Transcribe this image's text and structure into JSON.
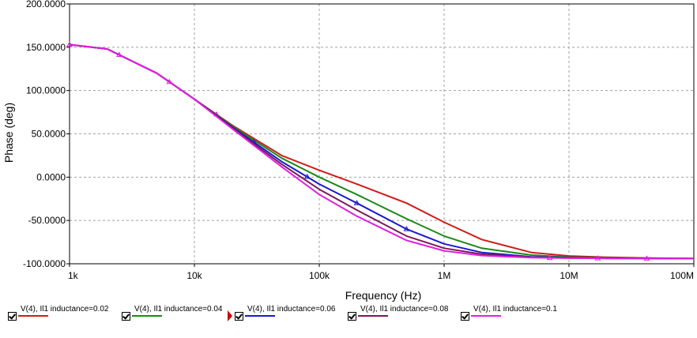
{
  "chart_data": {
    "type": "line",
    "title": "",
    "xlabel": "Frequency (Hz)",
    "ylabel": "Phase (deg)",
    "xscale": "log",
    "xlim": [
      1000,
      100000000
    ],
    "ylim": [
      -100,
      200
    ],
    "grid": true,
    "x_ticks": [
      1000,
      10000,
      100000,
      1000000,
      10000000,
      100000000
    ],
    "x_tick_labels": [
      "1k",
      "10k",
      "100k",
      "1M",
      "10M",
      "100M"
    ],
    "y_ticks": [
      200,
      150,
      100,
      50,
      0,
      -50,
      -100
    ],
    "y_tick_labels": [
      "200.0000",
      "150.0000",
      "100.0000",
      "50.0000",
      "0.0000",
      "-50.0000",
      "-100.0000"
    ],
    "legend_position": "bottom",
    "series": [
      {
        "name": "V(4), Il1 inductance=0.02",
        "color": "#d11c1c",
        "x": [
          1000,
          2000,
          5000,
          10000,
          20000,
          50000,
          100000,
          200000,
          500000,
          1000000,
          2000000,
          5000000,
          10000000,
          20000000,
          50000000,
          100000000
        ],
        "y": [
          153,
          148,
          120,
          90,
          60,
          25,
          8,
          -8,
          -30,
          -52,
          -72,
          -87,
          -91,
          -92.5,
          -93.5,
          -94
        ]
      },
      {
        "name": "V(4), Il1 inductance=0.04",
        "color": "#1a8a1a",
        "x": [
          1000,
          2000,
          5000,
          10000,
          20000,
          50000,
          100000,
          200000,
          500000,
          1000000,
          2000000,
          5000000,
          10000000,
          20000000,
          50000000,
          100000000
        ],
        "y": [
          153,
          148,
          120,
          90,
          59,
          22,
          0,
          -20,
          -48,
          -68,
          -82,
          -90,
          -92.5,
          -93.2,
          -93.7,
          -94
        ]
      },
      {
        "name": "V(4), Il1 inductance=0.06",
        "color": "#1a1acc",
        "x": [
          1000,
          2000,
          5000,
          10000,
          20000,
          50000,
          100000,
          200000,
          500000,
          1000000,
          2000000,
          5000000,
          10000000,
          20000000,
          50000000,
          100000000
        ],
        "y": [
          153,
          148,
          120,
          90,
          58,
          18,
          -8,
          -30,
          -60,
          -77,
          -87,
          -92,
          -93,
          -93.5,
          -93.8,
          -94
        ]
      },
      {
        "name": "V(4), Il1 inductance=0.08",
        "color": "#7a1a5a",
        "x": [
          1000,
          2000,
          5000,
          10000,
          20000,
          50000,
          100000,
          200000,
          500000,
          1000000,
          2000000,
          5000000,
          10000000,
          20000000,
          50000000,
          100000000
        ],
        "y": [
          153,
          148,
          120,
          90,
          57,
          15,
          -14,
          -38,
          -68,
          -82,
          -89,
          -92.5,
          -93.3,
          -93.7,
          -93.9,
          -94
        ]
      },
      {
        "name": "V(4), Il1 inductance=0.1",
        "color": "#e020e0",
        "x": [
          1000,
          2000,
          5000,
          10000,
          20000,
          50000,
          100000,
          200000,
          500000,
          1000000,
          2000000,
          5000000,
          10000000,
          20000000,
          50000000,
          100000000
        ],
        "y": [
          153,
          148,
          120,
          90,
          56,
          12,
          -20,
          -45,
          -73,
          -85,
          -90.5,
          -93,
          -93.5,
          -93.8,
          -94,
          -94
        ]
      }
    ]
  }
}
